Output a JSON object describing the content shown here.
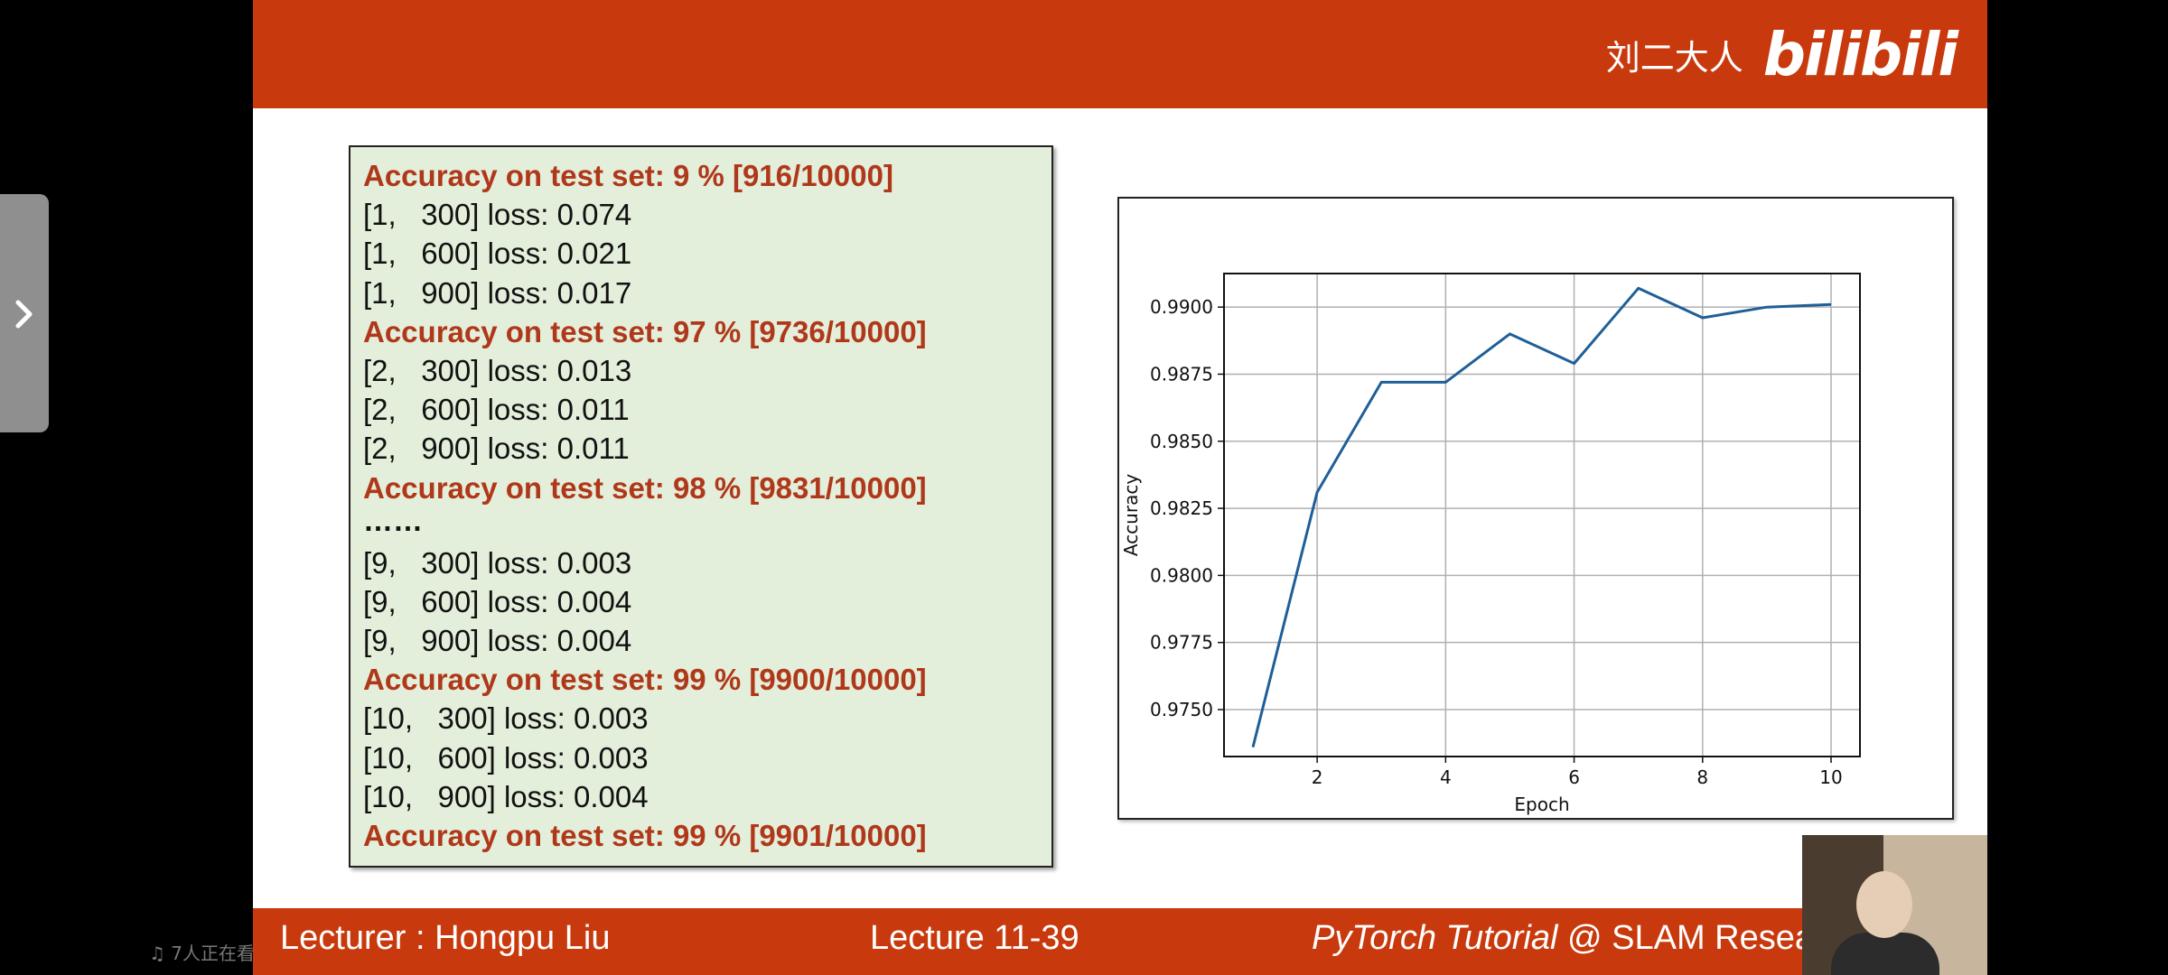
{
  "header": {
    "author": "刘二大人",
    "logo_text": "bilibili"
  },
  "footer": {
    "lecturer": "Lecturer : Hongpu Liu",
    "lecture": "Lecture 11-39",
    "course_italic": "PyTorch Tutorial",
    "course_rest": " @ SLAM Resea"
  },
  "log": {
    "lines": [
      "Accuracy on test set: 9 % [916/10000]",
      "[1,   300] loss: 0.074",
      "[1,   600] loss: 0.021",
      "[1,   900] loss: 0.017",
      "Accuracy on test set: 97 % [9736/10000]",
      "[2,   300] loss: 0.013",
      "[2,   600] loss: 0.011",
      "[2,   900] loss: 0.011",
      "Accuracy on test set: 98 % [9831/10000]",
      "……",
      "[9,   300] loss: 0.003",
      "[9,   600] loss: 0.004",
      "[9,   900] loss: 0.004",
      "Accuracy on test set: 99 % [9900/10000]",
      "[10,   300] loss: 0.003",
      "[10,   600] loss: 0.003",
      "[10,   900] loss: 0.004",
      "Accuracy on test set: 99 % [9901/10000]"
    ]
  },
  "chart_data": {
    "type": "line",
    "title": "",
    "xlabel": "Epoch",
    "ylabel": "Accuracy",
    "x": [
      1,
      2,
      3,
      4,
      5,
      6,
      7,
      8,
      9,
      10
    ],
    "series": [
      {
        "values": [
          0.9736,
          0.9831,
          0.9872,
          0.9872,
          0.989,
          0.9879,
          0.9907,
          0.9896,
          0.99,
          0.9901
        ]
      }
    ],
    "xticks": [
      2,
      4,
      6,
      8,
      10
    ],
    "yticks": [
      0.975,
      0.9775,
      0.98,
      0.9825,
      0.985,
      0.9875,
      0.99
    ],
    "ytick_labels": [
      "0.9750",
      "0.9775",
      "0.9800",
      "0.9825",
      "0.9850",
      "0.9875",
      "0.9900"
    ],
    "xlim": [
      0.55,
      10.45
    ],
    "ylim": [
      0.97325,
      0.99125
    ],
    "grid": true,
    "line_color": "#1f5f97"
  },
  "overlay": {
    "viewers": "7人正在看"
  }
}
